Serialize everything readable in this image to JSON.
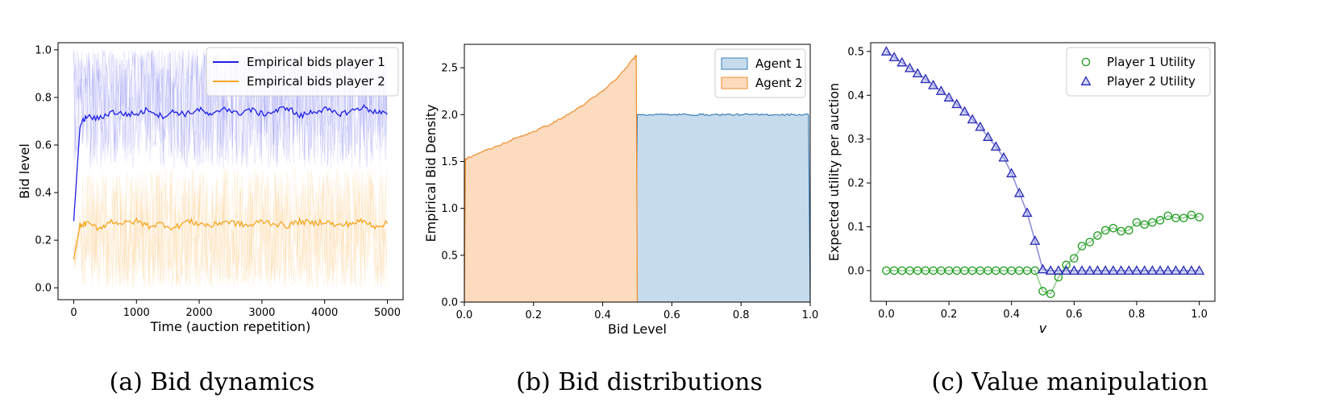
{
  "chart_data": [
    {
      "type": "line",
      "xlabel": "Time (auction repetition)",
      "ylabel": "Bid level",
      "xlim": [
        -250,
        5250
      ],
      "ylim": [
        -0.05,
        1.03
      ],
      "xticks": [
        0,
        1000,
        2000,
        3000,
        4000,
        5000
      ],
      "xtick_labels": [
        "0",
        "1000",
        "2000",
        "3000",
        "4000",
        "5000"
      ],
      "yticks": [
        0.0,
        0.2,
        0.4,
        0.6,
        0.8,
        1.0
      ],
      "ytick_labels": [
        "0.0",
        "0.2",
        "0.4",
        "0.6",
        "0.8",
        "1.0"
      ],
      "legend_position": "top-right",
      "grid": false,
      "series": [
        {
          "name": "Empirical bids player 1",
          "color": "#1f1fe6",
          "mean_level": 0.74,
          "band": [
            0.5,
            1.0
          ],
          "x": [
            0,
            100,
            200,
            400,
            600,
            800,
            1000,
            1200,
            1400,
            1600,
            1800,
            2000,
            2200,
            2400,
            2600,
            2800,
            3000,
            3200,
            3400,
            3600,
            3800,
            4000,
            4200,
            4400,
            4600,
            4800,
            5000
          ],
          "values": [
            0.28,
            0.68,
            0.72,
            0.71,
            0.74,
            0.73,
            0.73,
            0.75,
            0.72,
            0.74,
            0.73,
            0.75,
            0.72,
            0.76,
            0.73,
            0.75,
            0.73,
            0.74,
            0.76,
            0.72,
            0.74,
            0.75,
            0.73,
            0.74,
            0.76,
            0.74,
            0.73
          ]
        },
        {
          "name": "Empirical bids player 2",
          "color": "#f5a623",
          "mean_level": 0.27,
          "band": [
            0.0,
            0.5
          ],
          "x": [
            0,
            100,
            200,
            400,
            600,
            800,
            1000,
            1200,
            1400,
            1600,
            1800,
            2000,
            2200,
            2400,
            2600,
            2800,
            3000,
            3200,
            3400,
            3600,
            3800,
            4000,
            4200,
            4400,
            4600,
            4800,
            5000
          ],
          "values": [
            0.12,
            0.26,
            0.27,
            0.25,
            0.28,
            0.27,
            0.28,
            0.26,
            0.27,
            0.25,
            0.28,
            0.27,
            0.26,
            0.28,
            0.27,
            0.26,
            0.28,
            0.27,
            0.26,
            0.28,
            0.27,
            0.28,
            0.26,
            0.27,
            0.28,
            0.26,
            0.27
          ]
        }
      ]
    },
    {
      "type": "area",
      "xlabel": "Bid Level",
      "ylabel": "Empirical Bid Density",
      "xlim": [
        0,
        1.0
      ],
      "ylim": [
        0,
        2.75
      ],
      "xticks": [
        0.0,
        0.2,
        0.4,
        0.6,
        0.8,
        1.0
      ],
      "xtick_labels": [
        "0.0",
        "0.2",
        "0.4",
        "0.6",
        "0.8",
        "1.0"
      ],
      "yticks": [
        0.0,
        0.5,
        1.0,
        1.5,
        2.0,
        2.5
      ],
      "ytick_labels": [
        "0.0",
        "0.5",
        "1.0",
        "1.5",
        "2.0",
        "2.5"
      ],
      "legend_position": "top-right",
      "grid": false,
      "series": [
        {
          "name": "Agent 1",
          "fill": "#c6dbec",
          "stroke": "#3b7fb8",
          "x": [
            0.495,
            0.5,
            0.55,
            0.6,
            0.65,
            0.7,
            0.75,
            0.8,
            0.85,
            0.9,
            0.95,
            0.995,
            1.0
          ],
          "values": [
            0.0,
            2.0,
            2.0,
            2.0,
            2.0,
            2.0,
            2.0,
            2.0,
            2.0,
            2.0,
            2.0,
            2.0,
            0.0
          ]
        },
        {
          "name": "Agent 2",
          "fill": "#fddbbf",
          "stroke": "#ef8c2b",
          "x": [
            0.0,
            0.003,
            0.05,
            0.1,
            0.15,
            0.2,
            0.25,
            0.3,
            0.35,
            0.4,
            0.45,
            0.49,
            0.497,
            0.5
          ],
          "values": [
            0.0,
            1.53,
            1.6,
            1.67,
            1.75,
            1.82,
            1.9,
            2.0,
            2.12,
            2.25,
            2.42,
            2.6,
            2.63,
            0.0
          ]
        }
      ]
    },
    {
      "type": "scatter",
      "xlabel": "v",
      "ylabel": "Expected utility per auction",
      "xlim": [
        -0.05,
        1.05
      ],
      "ylim": [
        -0.07,
        0.52
      ],
      "xticks": [
        0.0,
        0.2,
        0.4,
        0.6,
        0.8,
        1.0
      ],
      "xtick_labels": [
        "0.0",
        "0.2",
        "0.4",
        "0.6",
        "0.8",
        "1.0"
      ],
      "yticks": [
        0.0,
        0.1,
        0.2,
        0.3,
        0.4,
        0.5
      ],
      "ytick_labels": [
        "0.0",
        "0.1",
        "0.2",
        "0.3",
        "0.4",
        "0.5"
      ],
      "legend_position": "top-right",
      "grid": false,
      "series": [
        {
          "name": "Player 1 Utility",
          "marker": "circle",
          "color": "#2ca02c",
          "x": [
            0.0,
            0.025,
            0.05,
            0.075,
            0.1,
            0.125,
            0.15,
            0.175,
            0.2,
            0.225,
            0.25,
            0.275,
            0.3,
            0.325,
            0.35,
            0.375,
            0.4,
            0.425,
            0.45,
            0.475,
            0.5,
            0.525,
            0.55,
            0.575,
            0.6,
            0.625,
            0.65,
            0.675,
            0.7,
            0.725,
            0.75,
            0.775,
            0.8,
            0.825,
            0.85,
            0.875,
            0.9,
            0.925,
            0.95,
            0.975,
            1.0
          ],
          "values": [
            0.0,
            0.0,
            0.0,
            0.0,
            0.0,
            0.0,
            0.0,
            0.0,
            0.0,
            0.0,
            0.0,
            0.0,
            0.0,
            0.0,
            0.0,
            0.0,
            0.0,
            0.0,
            0.0,
            0.0,
            -0.047,
            -0.053,
            -0.015,
            0.013,
            0.028,
            0.056,
            0.065,
            0.08,
            0.092,
            0.097,
            0.09,
            0.092,
            0.11,
            0.105,
            0.11,
            0.115,
            0.125,
            0.12,
            0.12,
            0.127,
            0.122
          ]
        },
        {
          "name": "Player 2 Utility",
          "marker": "triangle",
          "color": "#2828b4",
          "x": [
            0.0,
            0.025,
            0.05,
            0.075,
            0.1,
            0.125,
            0.15,
            0.175,
            0.2,
            0.225,
            0.25,
            0.275,
            0.3,
            0.325,
            0.35,
            0.375,
            0.4,
            0.425,
            0.45,
            0.475,
            0.5,
            0.525,
            0.55,
            0.575,
            0.6,
            0.625,
            0.65,
            0.675,
            0.7,
            0.725,
            0.75,
            0.775,
            0.8,
            0.825,
            0.85,
            0.875,
            0.9,
            0.925,
            0.95,
            0.975,
            1.0
          ],
          "values": [
            0.5,
            0.487,
            0.475,
            0.462,
            0.45,
            0.437,
            0.423,
            0.41,
            0.395,
            0.38,
            0.363,
            0.345,
            0.328,
            0.305,
            0.283,
            0.258,
            0.222,
            0.177,
            0.132,
            0.068,
            0.003,
            0.0,
            0.0,
            0.0,
            0.0,
            0.0,
            0.0,
            0.0,
            0.0,
            0.0,
            0.0,
            0.0,
            0.0,
            0.0,
            0.0,
            0.0,
            0.0,
            0.0,
            0.0,
            0.0,
            0.0
          ]
        }
      ]
    }
  ],
  "captions": [
    "(a) Bid dynamics",
    "(b) Bid distributions",
    "(c) Value manipulation"
  ]
}
